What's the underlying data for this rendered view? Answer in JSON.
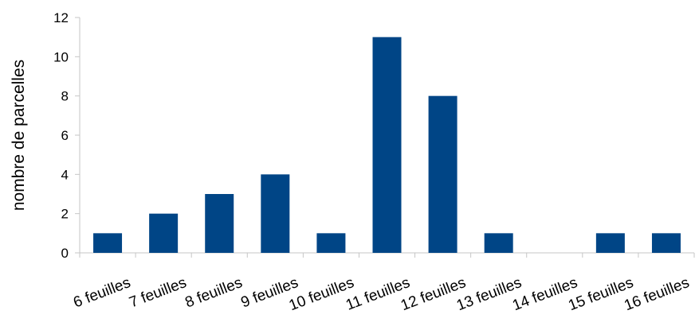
{
  "chart_data": {
    "type": "bar",
    "categories": [
      "6 feuilles",
      "7 feuilles",
      "8 feuilles",
      "9 feuilles",
      "10 feuilles",
      "11 feuilles",
      "12 feuilles",
      "13 feuilles",
      "14 feuilles",
      "15 feuilles",
      "16 feuilles"
    ],
    "series": [
      {
        "values": [
          1,
          2,
          3,
          4,
          1,
          11,
          8,
          1,
          0,
          1,
          1
        ]
      }
    ],
    "title": "",
    "xlabel": "",
    "ylabel": "nombre de parcelles",
    "ylim": [
      0,
      12
    ],
    "yticks": [
      "0",
      "2",
      "4",
      "6",
      "8",
      "10",
      "12"
    ],
    "grid": false,
    "legend": "none",
    "bar_color": "#004586",
    "axis_color": "#c6c6c6"
  }
}
